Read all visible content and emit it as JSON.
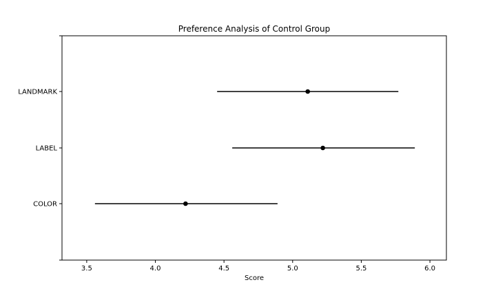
{
  "chart_data": {
    "type": "scatter",
    "title": "Preference Analysis of Control Group",
    "xlabel": "Score",
    "ylabel": "",
    "xlim": [
      3.32,
      6.12
    ],
    "x_ticks": [
      3.5,
      4.0,
      4.5,
      5.0,
      5.5,
      6.0
    ],
    "x_tick_labels": [
      "3.5",
      "4.0",
      "4.5",
      "5.0",
      "5.5",
      "6.0"
    ],
    "categories": [
      "LANDMARK",
      "LABEL",
      "COLOR"
    ],
    "points": [
      {
        "category": "LANDMARK",
        "mean": 5.11,
        "lower": 4.45,
        "upper": 5.77
      },
      {
        "category": "LABEL",
        "mean": 5.22,
        "lower": 4.56,
        "upper": 5.89
      },
      {
        "category": "COLOR",
        "mean": 4.22,
        "lower": 3.56,
        "upper": 4.89
      }
    ],
    "grid": false,
    "colors": {
      "marker": "#000000",
      "errorbar": "#000000",
      "axes": "#000000"
    }
  }
}
